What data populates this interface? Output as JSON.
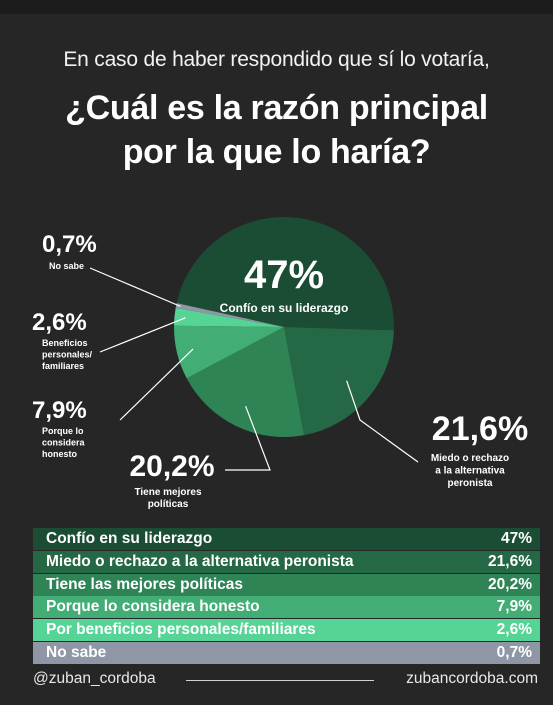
{
  "header": {
    "subtitle": "En caso de haber respondido que sí lo votaría,",
    "title_line1": "¿Cuál es la razón principal",
    "title_line2": "por la que lo haría?"
  },
  "chart_data": {
    "type": "pie",
    "slices": [
      {
        "label": "Confío en su liderazgo",
        "value": 47,
        "display": "47%",
        "color": "#1b4d35"
      },
      {
        "label": "Miedo o rechazo a la alternativa peronista",
        "value": 21.6,
        "display": "21,6%",
        "color": "#256845"
      },
      {
        "label": "Tiene mejores políticas",
        "value": 20.2,
        "display": "20,2%",
        "color": "#2f8456"
      },
      {
        "label": "Porque lo considera honesto",
        "value": 7.9,
        "display": "7,9%",
        "color": "#42ad74"
      },
      {
        "label": "Beneficios personales/ familiares",
        "value": 2.6,
        "display": "2,6%",
        "color": "#56d495"
      },
      {
        "label": "No sabe",
        "value": 0.7,
        "display": "0,7%",
        "color": "#8f97a6"
      }
    ],
    "callouts": {
      "liderazgo": {
        "pct": "47%",
        "lines": [
          "Confío en su liderazgo"
        ]
      },
      "miedo": {
        "pct": "21,6%",
        "lines": [
          "Miedo o rechazo",
          "a la alternativa",
          "peronista"
        ]
      },
      "politicas": {
        "pct": "20,2%",
        "lines": [
          "Tiene mejores",
          "políticas"
        ]
      },
      "honesto": {
        "pct": "7,9%",
        "lines": [
          "Porque lo",
          "considera",
          "honesto"
        ]
      },
      "beneficios": {
        "pct": "2,6%",
        "lines": [
          "Beneficios",
          "personales/",
          "familiares"
        ]
      },
      "nosabe": {
        "pct": "0,7%",
        "lines": [
          "No sabe"
        ]
      }
    }
  },
  "table": {
    "rows": [
      {
        "label": "Confío en su liderazgo",
        "value": "47%",
        "color": "#1b4d35"
      },
      {
        "label": "Miedo o rechazo a la alternativa peronista",
        "value": "21,6%",
        "color": "#256845"
      },
      {
        "label": "Tiene las mejores políticas",
        "value": "20,2%",
        "color": "#2f8456"
      },
      {
        "label": "Porque lo considera honesto",
        "value": "7,9%",
        "color": "#42ad74"
      },
      {
        "label": "Por beneficios personales/familiares",
        "value": "2,6%",
        "color": "#56d495"
      },
      {
        "label": "No sabe",
        "value": "0,7%",
        "color": "#8f97a6"
      }
    ]
  },
  "footer": {
    "handle": "@zuban_cordoba",
    "website": "zubancordoba.com"
  }
}
